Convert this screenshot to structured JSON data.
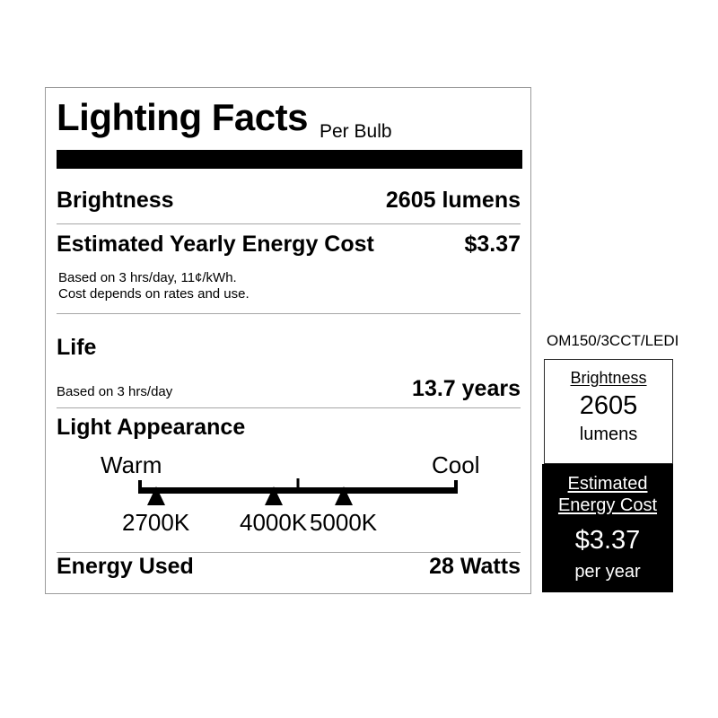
{
  "main_label": {
    "title": "Lighting Facts",
    "per_bulb": "Per Bulb",
    "brightness": {
      "label": "Brightness",
      "value": "2605 lumens"
    },
    "energy_cost": {
      "label": "Estimated Yearly Energy Cost",
      "value": "$3.37",
      "notes": [
        "Based on 3 hrs/day, 11¢/kWh.",
        "Cost depends on rates and use."
      ]
    },
    "life": {
      "label": "Life",
      "basis": "Based on 3 hrs/day",
      "value": "13.7 years"
    },
    "light_appearance": {
      "label": "Light Appearance",
      "warm": "Warm",
      "cool": "Cool",
      "markers": [
        {
          "label": "2700K",
          "left": "5.5%"
        },
        {
          "label": "4000K",
          "left": "42.3%"
        },
        {
          "label": "5000K",
          "left": "64.2%"
        }
      ]
    },
    "energy_used": {
      "label": "Energy Used",
      "value": "28 Watts"
    }
  },
  "side_label": {
    "model": "OM150/3CCT/LEDI",
    "brightness": {
      "label": "Brightness",
      "value": "2605",
      "unit": "lumens"
    },
    "energy_cost": {
      "label_line1": "Estimated",
      "label_line2": "Energy Cost",
      "value": "$3.37",
      "unit": "per year"
    }
  },
  "colors": {
    "ink": "#000000",
    "divider": "#a6a6a6",
    "main_border": "#9b9b9b"
  }
}
